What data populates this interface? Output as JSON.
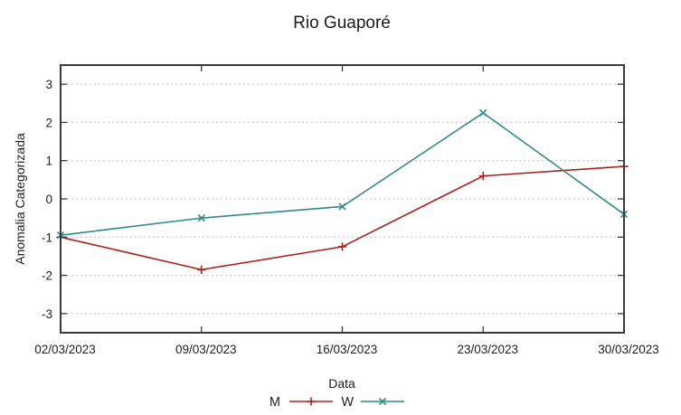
{
  "chart_data": {
    "type": "line",
    "title": "Rio Guaporé",
    "xlabel": "Data",
    "ylabel": "Anomalia Categorizada",
    "categories": [
      "02/03/2023",
      "09/03/2023",
      "16/03/2023",
      "23/03/2023",
      "30/03/2023"
    ],
    "yticks": [
      -3,
      -2,
      -1,
      0,
      1,
      2,
      3
    ],
    "ylim": [
      -3.5,
      3.5
    ],
    "grid": "horizontal-dotted",
    "legend_position": "bottom-center",
    "series": [
      {
        "name": "M",
        "color": "#a8241c",
        "marker": "plus",
        "values": [
          -1.0,
          -1.85,
          -1.25,
          0.6,
          0.85
        ]
      },
      {
        "name": "W",
        "color": "#31898d",
        "marker": "cross",
        "values": [
          -0.95,
          -0.5,
          -0.2,
          2.25,
          -0.4
        ]
      }
    ],
    "colors": {
      "border": "#3a3a3a",
      "grid": "#bfbfbf",
      "text": "#1c1c1c",
      "background": "#ffffff"
    }
  }
}
